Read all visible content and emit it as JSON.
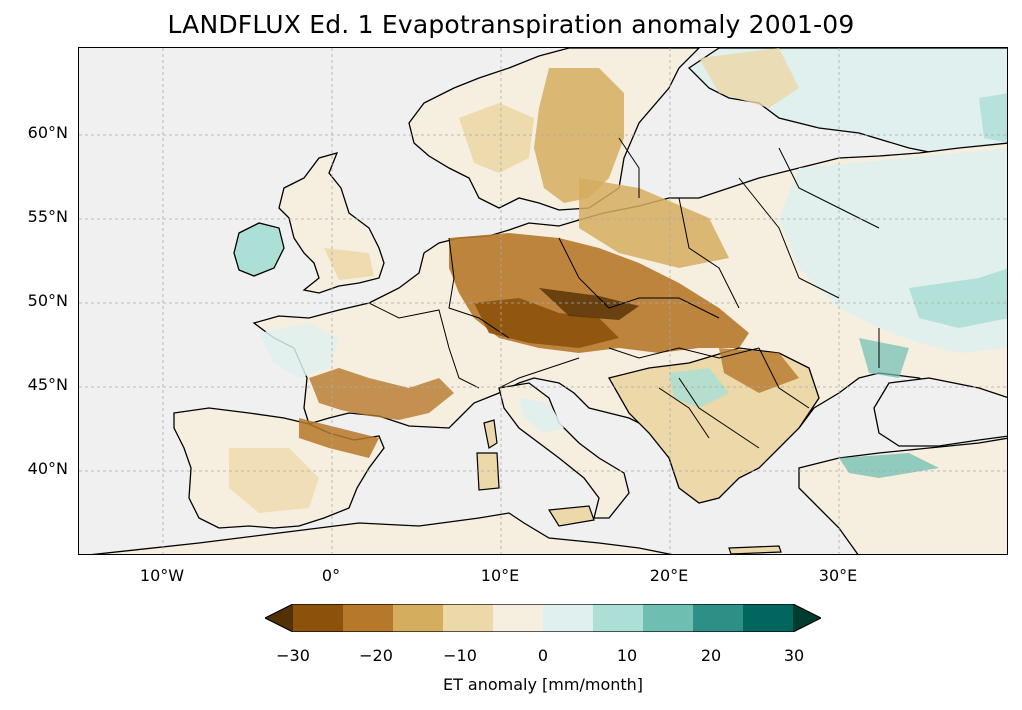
{
  "title": "LANDFLUX Ed. 1 Evapotranspiration anomaly 2001-09",
  "map": {
    "lat_labels": [
      "60°N",
      "55°N",
      "50°N",
      "45°N",
      "40°N"
    ],
    "lon_labels": [
      "10°W",
      "0°",
      "10°E",
      "20°E",
      "30°E"
    ],
    "gridlines": true,
    "ocean_color": "#f0f0f0"
  },
  "colorbar": {
    "label": "ET anomaly [mm/month]",
    "tick_labels": [
      "−30",
      "−20",
      "−10",
      "0",
      "10",
      "20",
      "30"
    ],
    "min": -30,
    "max": 30,
    "colors": [
      "#543005",
      "#8c510a",
      "#b6782a",
      "#d5ad5f",
      "#ecd8a8",
      "#f6efdf",
      "#dff0ee",
      "#acdfd6",
      "#6ebfb2",
      "#2e8f86",
      "#01665e",
      "#003c30"
    ]
  }
}
